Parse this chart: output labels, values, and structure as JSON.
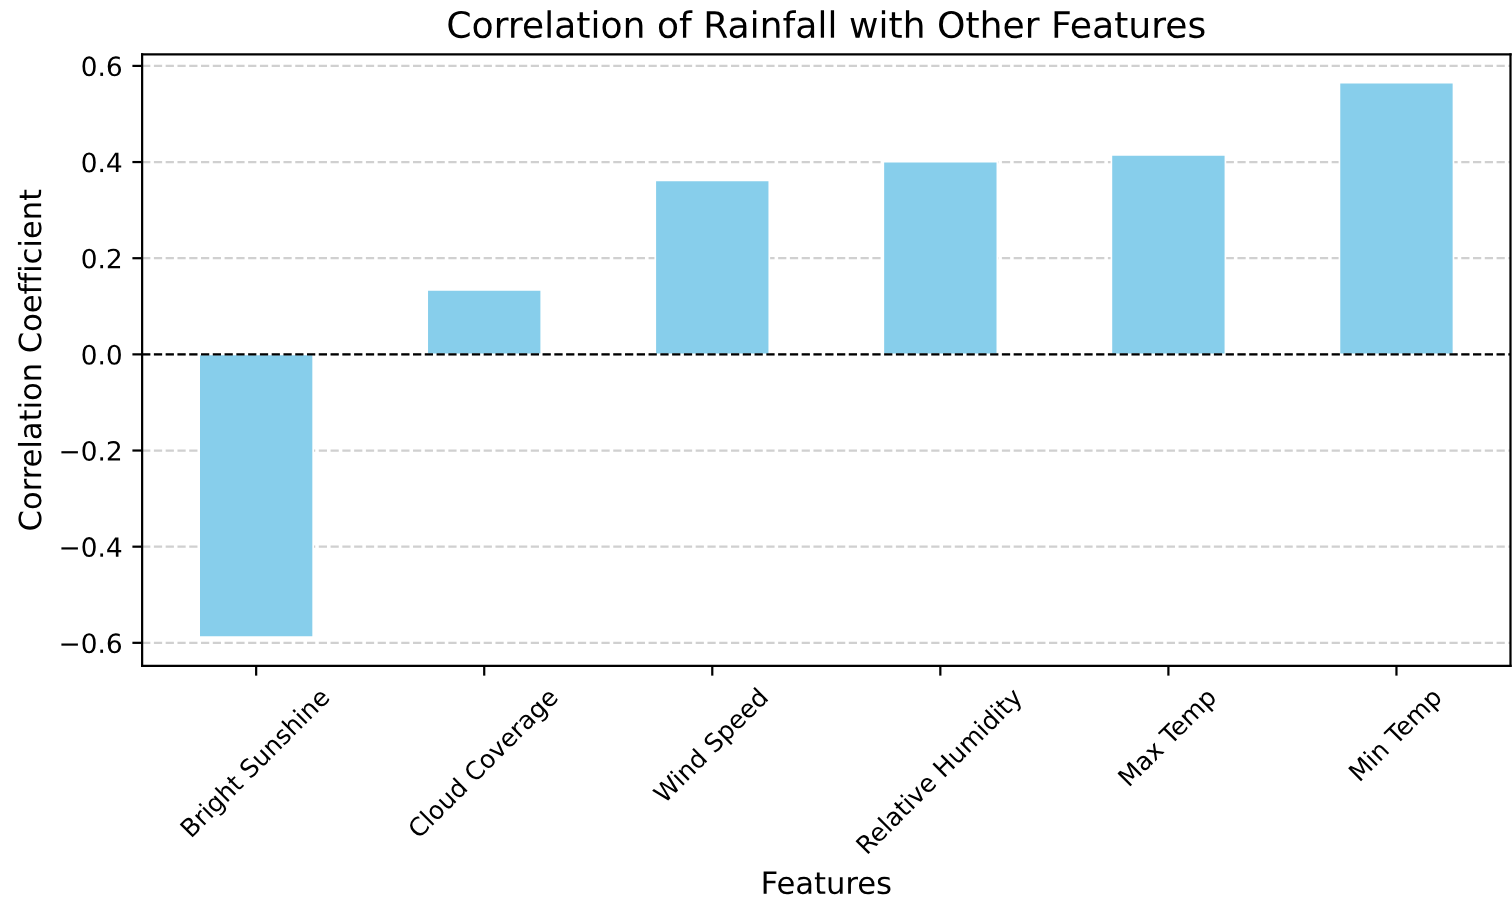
{
  "chart_data": {
    "type": "bar",
    "title": "Correlation of Rainfall with Other Features",
    "xlabel": "Features",
    "ylabel": "Correlation Coefficient",
    "categories": [
      "Bright Sunshine",
      "Cloud Coverage",
      "Wind Speed",
      "Relative Humidity",
      "Max Temp",
      "Min Temp"
    ],
    "series": [
      {
        "color": "#87ceeb",
        "values": [
          -0.588,
          0.134,
          0.362,
          0.401,
          0.415,
          0.565
        ]
      }
    ],
    "ylim": [
      -0.648,
      0.624
    ],
    "yticks": [
      {
        "value": -0.6,
        "label": "−0.6"
      },
      {
        "value": -0.4,
        "label": "−0.4"
      },
      {
        "value": -0.2,
        "label": "−0.2"
      },
      {
        "value": 0,
        "label": "0.0"
      },
      {
        "value": 0.2,
        "label": "0.2"
      },
      {
        "value": 0.4,
        "label": "0.4"
      },
      {
        "value": 0.6,
        "label": "0.6"
      }
    ],
    "ref_lines": [
      {
        "axis": "y",
        "value": 0,
        "color": "#000000",
        "line_style": "dashed"
      }
    ],
    "grid": "y",
    "legend": false
  }
}
